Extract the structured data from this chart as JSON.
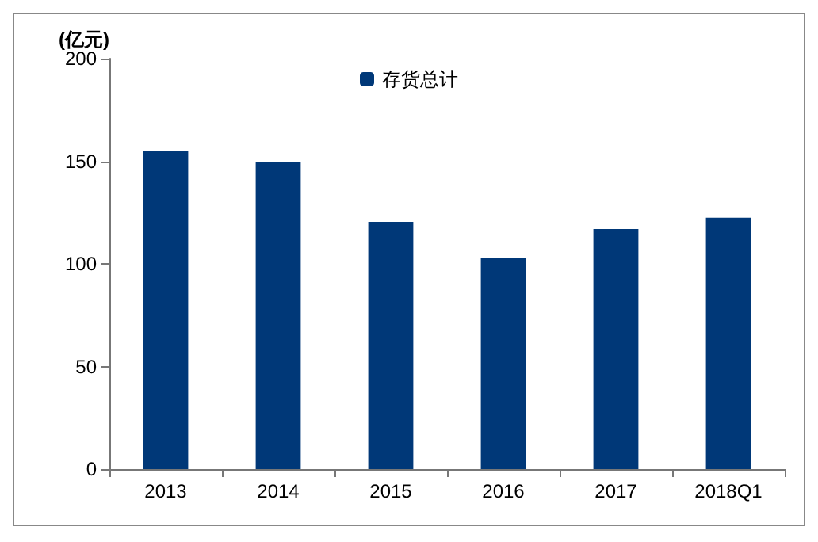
{
  "chart_data": {
    "type": "bar",
    "ylabel": "(亿元)",
    "categories": [
      "2013",
      "2014",
      "2015",
      "2016",
      "2017",
      "2018Q1"
    ],
    "series": [
      {
        "name": "存货总计",
        "color": "#003878",
        "values": [
          155,
          149.5,
          120.5,
          103,
          117,
          122.5
        ]
      }
    ],
    "ylim": [
      0,
      200
    ],
    "yticks": [
      0,
      50,
      100,
      150,
      200
    ],
    "grid": false,
    "legend": "top"
  }
}
